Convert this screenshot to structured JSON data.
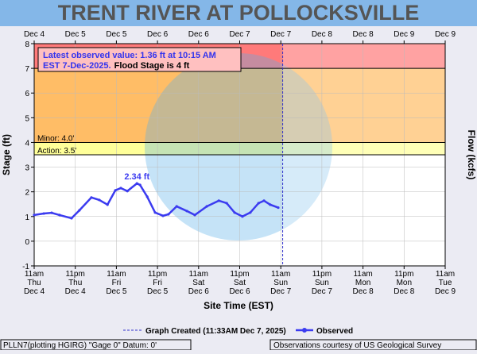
{
  "chart_data": {
    "type": "line",
    "title": "TRENT RIVER AT POLLOCKSVILLE",
    "y_label": "Stage (ft)",
    "y2_label": "Flow (kcfs)",
    "x_label": "Site Time (EST)",
    "xlim": [
      0,
      120
    ],
    "ylim": [
      -1,
      8
    ],
    "yticks": [
      -1,
      0,
      1,
      2,
      3,
      4,
      5,
      6,
      7,
      8
    ],
    "grid": true,
    "xticks": [
      {
        "value": 0,
        "label": [
          "11am",
          "Thu",
          "Dec 4"
        ]
      },
      {
        "value": 12,
        "label": [
          "11pm",
          "Thu",
          "Dec 4"
        ]
      },
      {
        "value": 24,
        "label": [
          "11am",
          "Fri",
          "Dec 5"
        ]
      },
      {
        "value": 36,
        "label": [
          "11pm",
          "Fri",
          "Dec 5"
        ]
      },
      {
        "value": 48,
        "label": [
          "11am",
          "Sat",
          "Dec 6"
        ]
      },
      {
        "value": 60,
        "label": [
          "11pm",
          "Sat",
          "Dec 6"
        ]
      },
      {
        "value": 72,
        "label": [
          "11am",
          "Sun",
          "Dec 7"
        ]
      },
      {
        "value": 84,
        "label": [
          "11pm",
          "Sun",
          "Dec 7"
        ]
      },
      {
        "value": 96,
        "label": [
          "11am",
          "Mon",
          "Dec 8"
        ]
      },
      {
        "value": 108,
        "label": [
          "11pm",
          "Mon",
          "Dec 8"
        ]
      },
      {
        "value": 120,
        "label": [
          "11am",
          "Tue",
          "Dec 9"
        ]
      }
    ],
    "x2ticks": [
      {
        "value": 0,
        "label": "Dec 4"
      },
      {
        "value": 12,
        "label": "Dec 5"
      },
      {
        "value": 24,
        "label": "Dec 5"
      },
      {
        "value": 36,
        "label": "Dec 6"
      },
      {
        "value": 48,
        "label": "Dec 6"
      },
      {
        "value": 60,
        "label": "Dec 7"
      },
      {
        "value": 72,
        "label": "Dec 7"
      },
      {
        "value": 84,
        "label": "Dec 8"
      },
      {
        "value": 96,
        "label": "Dec 8"
      },
      {
        "value": 108,
        "label": "Dec 9"
      },
      {
        "value": 120,
        "label": "Dec 9"
      }
    ],
    "bands": [
      {
        "from": 7,
        "to": 8,
        "color": "#ff7a7a"
      },
      {
        "from": 4,
        "to": 7,
        "color": "#ffbd66"
      },
      {
        "from": 3.5,
        "to": 4,
        "color": "#ffff99"
      }
    ],
    "thresholds": [
      {
        "value": 7
      },
      {
        "value": 4,
        "label": "Minor: 4.0'"
      },
      {
        "value": 3.5,
        "label": "Action: 3.5'"
      }
    ],
    "series": [
      {
        "name": "Observed",
        "color": "#3b3bf0",
        "x": [
          0,
          2.8,
          5.1,
          7.4,
          10.9,
          13.2,
          16.7,
          19,
          21.4,
          23.7,
          25.3,
          27.2,
          30,
          30.9,
          33,
          35.3,
          37.6,
          39.2,
          41.6,
          44.6,
          46.9,
          50.4,
          53.9,
          56.2,
          58.5,
          60.8,
          63.1,
          65.5,
          67.1,
          68.9,
          71.25
        ],
        "values": [
          1.06,
          1.12,
          1.15,
          1.06,
          0.93,
          1.25,
          1.77,
          1.67,
          1.48,
          2.06,
          2.15,
          2.03,
          2.34,
          2.28,
          1.8,
          1.16,
          1.03,
          1.09,
          1.41,
          1.22,
          1.06,
          1.41,
          1.64,
          1.54,
          1.16,
          1.0,
          1.16,
          1.54,
          1.64,
          1.48,
          1.36
        ]
      }
    ],
    "peak_annotation": {
      "x": 30,
      "y": 2.34,
      "label": "2.34 ft"
    },
    "created_line": {
      "x": 72.55,
      "label": "Graph Created (11:33AM Dec 7, 2025)"
    },
    "info_box": {
      "line1": "Latest observed value: 1.36 ft at 10:15 AM",
      "line2": "EST 7-Dec-2025.",
      "line2b": "Flood Stage is 4 ft"
    },
    "footer_left": "PLLN7(plotting HGIRG) \"Gage 0\" Datum: 0'",
    "footer_right": "Observations courtesy of US Geological Survey"
  }
}
